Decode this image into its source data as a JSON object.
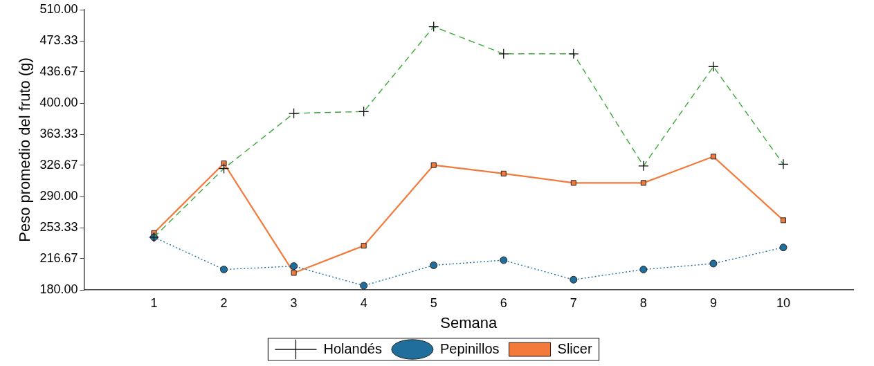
{
  "chart_data": {
    "type": "line",
    "xlabel": "Semana",
    "ylabel": "Peso promedio del fruto (g)",
    "x": [
      1,
      2,
      3,
      4,
      5,
      6,
      7,
      8,
      9,
      10
    ],
    "xlim": [
      0,
      11
    ],
    "xticks": [
      1,
      2,
      3,
      4,
      5,
      6,
      7,
      8,
      9,
      10
    ],
    "ylim": [
      180,
      510
    ],
    "yticks": [
      {
        "value": 180,
        "label": "180.00"
      },
      {
        "value": 216.67,
        "label": "216.67"
      },
      {
        "value": 253.33,
        "label": "253.33"
      },
      {
        "value": 290,
        "label": "290.00"
      },
      {
        "value": 326.67,
        "label": "326.67"
      },
      {
        "value": 363.33,
        "label": "363.33"
      },
      {
        "value": 400,
        "label": "400.00"
      },
      {
        "value": 436.67,
        "label": "436.67"
      },
      {
        "value": 473.33,
        "label": "473.33"
      },
      {
        "value": 510,
        "label": "510.00"
      }
    ],
    "grid": false,
    "legend": "bottom",
    "series": [
      {
        "name": "Holandés",
        "color": "#3aa935",
        "marker": "cross",
        "line_style": "dashed",
        "values": [
          242,
          323,
          388,
          390,
          490,
          458,
          458,
          326,
          443,
          328
        ]
      },
      {
        "name": "Pepinillos",
        "color": "#1f6e9c",
        "marker": "circle",
        "line_style": "dotted",
        "values": [
          242,
          204,
          208,
          185,
          209,
          215,
          192,
          204,
          211,
          230
        ]
      },
      {
        "name": "Slicer",
        "color": "#f47a3c",
        "marker": "square",
        "line_style": "solid",
        "values": [
          247,
          329,
          200,
          232,
          327,
          317,
          306,
          306,
          337,
          262
        ]
      }
    ]
  }
}
